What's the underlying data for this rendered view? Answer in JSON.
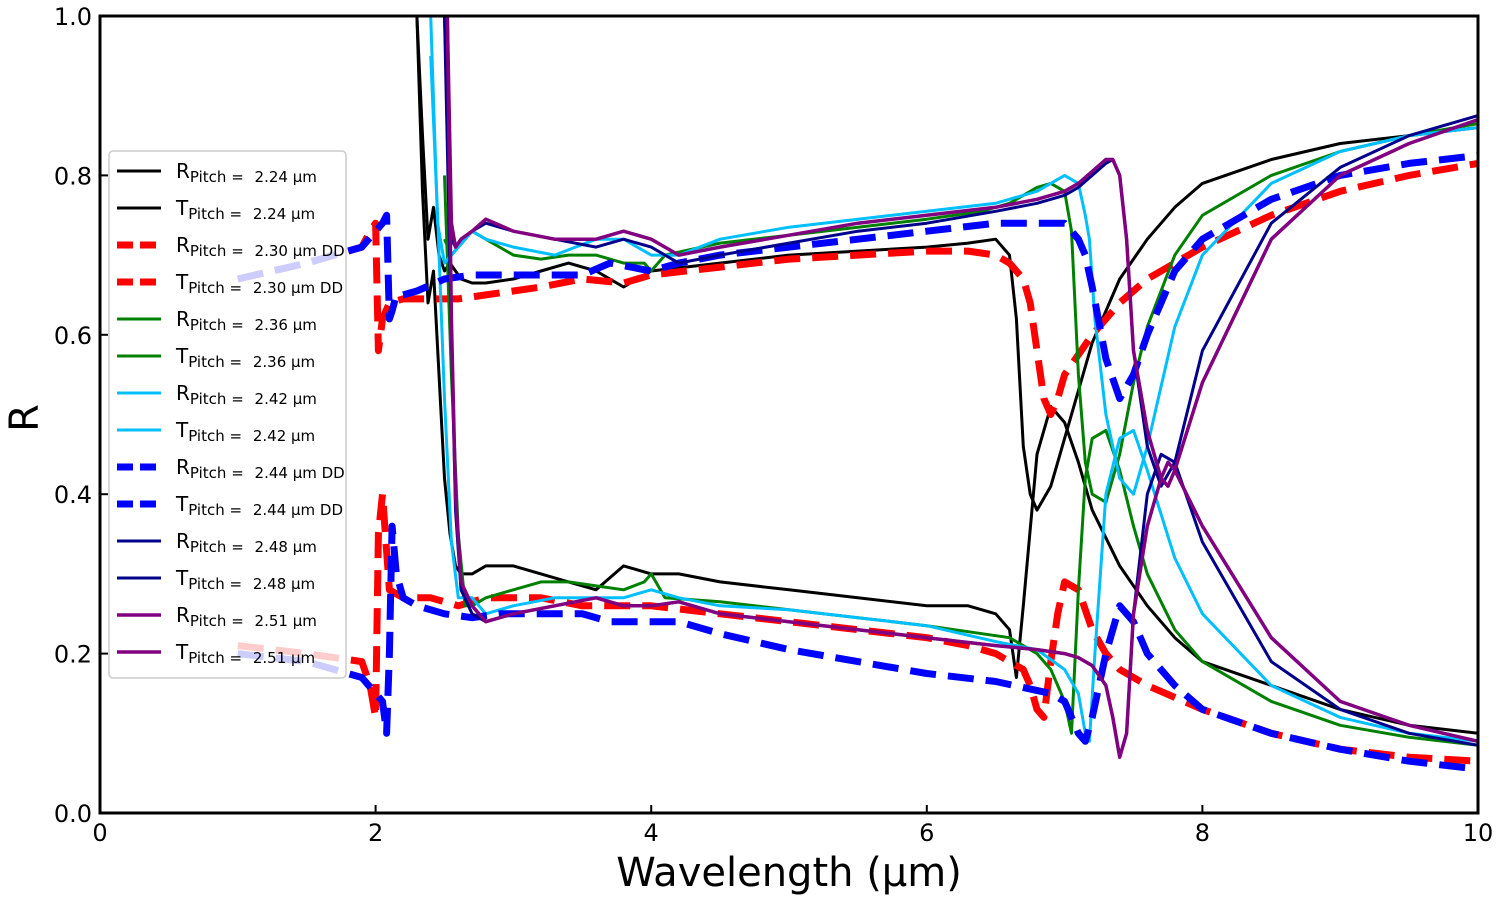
{
  "chart_data": {
    "type": "line",
    "xlabel": "Wavelength (μm)",
    "ylabel": "R",
    "xlim": [
      0,
      10
    ],
    "ylim": [
      0,
      1
    ],
    "xticks": [
      "0",
      "2",
      "4",
      "6",
      "8",
      "10"
    ],
    "yticks": [
      "0.0",
      "0.2",
      "0.4",
      "0.6",
      "0.8",
      "1.0"
    ],
    "grid": false,
    "legend_placement": "center-left",
    "series": [
      {
        "letter": "R",
        "sub": "Pitch = ",
        "rest": "2.24 μm",
        "color": "#000000",
        "width": 3,
        "dash": "",
        "x": [
          2.3,
          2.34,
          2.38,
          2.42,
          2.46,
          2.5,
          2.54,
          2.58,
          2.62,
          2.7,
          2.8,
          2.9,
          3.0,
          3.2,
          3.4,
          3.6,
          3.8,
          4.0,
          4.2,
          4.5,
          5.0,
          5.5,
          6.0,
          6.3,
          6.5,
          6.6,
          6.65,
          6.7,
          6.8,
          6.9,
          7.0,
          7.1,
          7.2,
          7.4,
          7.6,
          7.8,
          8.0,
          8.5,
          9.0,
          9.5,
          10.0
        ],
        "y": [
          1.0,
          0.78,
          0.64,
          0.68,
          0.55,
          0.42,
          0.35,
          0.31,
          0.3,
          0.3,
          0.31,
          0.31,
          0.31,
          0.3,
          0.29,
          0.28,
          0.31,
          0.3,
          0.3,
          0.29,
          0.28,
          0.27,
          0.26,
          0.26,
          0.25,
          0.23,
          0.17,
          0.26,
          0.45,
          0.51,
          0.49,
          0.44,
          0.38,
          0.31,
          0.26,
          0.22,
          0.19,
          0.16,
          0.13,
          0.11,
          0.1
        ]
      },
      {
        "letter": "T",
        "sub": "Pitch = ",
        "rest": "2.24 μm",
        "color": "#000000",
        "width": 3,
        "dash": "",
        "x": [
          2.3,
          2.34,
          2.38,
          2.42,
          2.46,
          2.5,
          2.54,
          2.58,
          2.62,
          2.7,
          2.8,
          3.0,
          3.2,
          3.4,
          3.6,
          3.8,
          4.0,
          4.5,
          5.0,
          5.5,
          6.0,
          6.3,
          6.5,
          6.6,
          6.65,
          6.7,
          6.75,
          6.8,
          6.9,
          7.0,
          7.2,
          7.4,
          7.6,
          7.8,
          8.0,
          8.5,
          9.0,
          9.5,
          10.0
        ],
        "y": [
          1.0,
          0.85,
          0.72,
          0.76,
          0.7,
          0.68,
          0.69,
          0.68,
          0.67,
          0.665,
          0.665,
          0.67,
          0.68,
          0.69,
          0.68,
          0.66,
          0.68,
          0.69,
          0.7,
          0.705,
          0.71,
          0.715,
          0.72,
          0.7,
          0.62,
          0.46,
          0.4,
          0.38,
          0.41,
          0.47,
          0.59,
          0.67,
          0.72,
          0.76,
          0.79,
          0.82,
          0.84,
          0.85,
          0.86
        ]
      },
      {
        "letter": "R",
        "sub": "Pitch = ",
        "rest": "2.30 μm DD",
        "color": "#ff0000",
        "width": 7,
        "dash": "26,12",
        "x": [
          1.0,
          1.5,
          1.9,
          1.96,
          2.0,
          2.02,
          2.05,
          2.1,
          2.2,
          2.4,
          2.6,
          2.8,
          3.0,
          3.2,
          3.5,
          3.8,
          4.0,
          4.5,
          5.0,
          5.5,
          6.0,
          6.3,
          6.5,
          6.6,
          6.7,
          6.75,
          6.8,
          6.85,
          6.9,
          6.95,
          7.0,
          7.1,
          7.2,
          7.3,
          7.4,
          7.6,
          8.0,
          8.5,
          9.0,
          9.5,
          10.0
        ],
        "y": [
          0.21,
          0.2,
          0.19,
          0.16,
          0.12,
          0.35,
          0.4,
          0.28,
          0.27,
          0.27,
          0.26,
          0.27,
          0.27,
          0.27,
          0.26,
          0.26,
          0.26,
          0.25,
          0.24,
          0.23,
          0.22,
          0.21,
          0.2,
          0.19,
          0.18,
          0.16,
          0.13,
          0.12,
          0.19,
          0.25,
          0.29,
          0.28,
          0.23,
          0.2,
          0.18,
          0.16,
          0.13,
          0.1,
          0.08,
          0.07,
          0.065
        ]
      },
      {
        "letter": "T",
        "sub": "Pitch = ",
        "rest": "2.30 μm DD",
        "color": "#ff0000",
        "width": 7,
        "dash": "26,12",
        "x": [
          1.0,
          1.5,
          1.9,
          1.96,
          2.0,
          2.02,
          2.05,
          2.1,
          2.2,
          2.4,
          2.6,
          2.8,
          3.0,
          3.2,
          3.5,
          3.8,
          4.0,
          4.5,
          5.0,
          5.5,
          6.0,
          6.3,
          6.5,
          6.6,
          6.7,
          6.75,
          6.8,
          6.85,
          6.9,
          6.95,
          7.0,
          7.2,
          7.4,
          7.6,
          8.0,
          8.5,
          9.0,
          9.5,
          10.0
        ],
        "y": [
          0.67,
          0.69,
          0.71,
          0.73,
          0.74,
          0.58,
          0.62,
          0.64,
          0.645,
          0.645,
          0.645,
          0.65,
          0.655,
          0.66,
          0.67,
          0.665,
          0.675,
          0.685,
          0.695,
          0.7,
          0.705,
          0.705,
          0.7,
          0.69,
          0.67,
          0.64,
          0.58,
          0.52,
          0.5,
          0.52,
          0.55,
          0.6,
          0.64,
          0.67,
          0.71,
          0.75,
          0.78,
          0.8,
          0.815
        ]
      },
      {
        "letter": "R",
        "sub": "Pitch = ",
        "rest": "2.36 μm",
        "color": "#008000",
        "width": 3,
        "dash": "",
        "x": [
          2.5,
          2.55,
          2.6,
          2.65,
          2.7,
          2.8,
          3.0,
          3.2,
          3.4,
          3.6,
          3.8,
          3.95,
          4.0,
          4.1,
          4.5,
          5.0,
          5.5,
          6.0,
          6.4,
          6.6,
          6.8,
          6.9,
          7.0,
          7.05,
          7.1,
          7.15,
          7.2,
          7.3,
          7.4,
          7.5,
          7.6,
          7.8,
          8.0,
          8.5,
          9.0,
          9.5,
          10.0
        ],
        "y": [
          0.8,
          0.55,
          0.35,
          0.26,
          0.26,
          0.27,
          0.28,
          0.29,
          0.29,
          0.285,
          0.28,
          0.29,
          0.3,
          0.27,
          0.265,
          0.255,
          0.245,
          0.235,
          0.225,
          0.22,
          0.2,
          0.18,
          0.14,
          0.1,
          0.28,
          0.42,
          0.47,
          0.48,
          0.43,
          0.36,
          0.3,
          0.23,
          0.19,
          0.14,
          0.11,
          0.095,
          0.085
        ]
      },
      {
        "letter": "T",
        "sub": "Pitch = ",
        "rest": "2.36 μm",
        "color": "#008000",
        "width": 3,
        "dash": "",
        "x": [
          2.5,
          2.55,
          2.6,
          2.65,
          2.7,
          2.8,
          3.0,
          3.2,
          3.4,
          3.6,
          3.8,
          3.95,
          4.0,
          4.1,
          4.5,
          5.0,
          5.5,
          6.0,
          6.4,
          6.6,
          6.8,
          6.9,
          7.0,
          7.05,
          7.1,
          7.15,
          7.2,
          7.3,
          7.4,
          7.5,
          7.6,
          7.8,
          8.0,
          8.5,
          9.0,
          9.5,
          10.0
        ],
        "y": [
          0.72,
          0.7,
          0.71,
          0.72,
          0.73,
          0.72,
          0.7,
          0.695,
          0.7,
          0.7,
          0.69,
          0.69,
          0.68,
          0.7,
          0.715,
          0.725,
          0.735,
          0.745,
          0.755,
          0.765,
          0.785,
          0.79,
          0.78,
          0.73,
          0.55,
          0.44,
          0.4,
          0.39,
          0.45,
          0.54,
          0.61,
          0.7,
          0.75,
          0.8,
          0.83,
          0.85,
          0.865
        ]
      },
      {
        "letter": "R",
        "sub": "Pitch = ",
        "rest": "2.42 μm",
        "color": "#00bfff",
        "width": 3,
        "dash": "",
        "x": [
          2.4,
          2.45,
          2.5,
          2.55,
          2.6,
          2.7,
          2.8,
          3.0,
          3.3,
          3.6,
          3.8,
          4.0,
          4.2,
          4.5,
          5.0,
          5.5,
          6.0,
          6.5,
          6.8,
          7.0,
          7.1,
          7.15,
          7.18,
          7.22,
          7.3,
          7.4,
          7.5,
          7.6,
          7.8,
          8.0,
          8.5,
          9.0,
          9.5,
          10.0
        ],
        "y": [
          0.95,
          0.75,
          0.52,
          0.34,
          0.27,
          0.27,
          0.25,
          0.26,
          0.27,
          0.27,
          0.27,
          0.28,
          0.27,
          0.26,
          0.255,
          0.245,
          0.235,
          0.215,
          0.205,
          0.18,
          0.15,
          0.1,
          0.09,
          0.2,
          0.4,
          0.47,
          0.48,
          0.43,
          0.32,
          0.25,
          0.16,
          0.12,
          0.1,
          0.09
        ]
      },
      {
        "letter": "T",
        "sub": "Pitch = ",
        "rest": "2.42 μm",
        "color": "#00bfff",
        "width": 3,
        "dash": "",
        "x": [
          2.4,
          2.45,
          2.5,
          2.55,
          2.6,
          2.7,
          2.8,
          3.0,
          3.3,
          3.6,
          3.8,
          4.0,
          4.2,
          4.5,
          5.0,
          5.5,
          6.0,
          6.5,
          6.8,
          7.0,
          7.1,
          7.15,
          7.18,
          7.22,
          7.3,
          7.4,
          7.5,
          7.6,
          7.8,
          8.0,
          8.5,
          9.0,
          9.5,
          10.0
        ],
        "y": [
          1.0,
          0.74,
          0.69,
          0.7,
          0.71,
          0.73,
          0.72,
          0.71,
          0.7,
          0.72,
          0.72,
          0.7,
          0.7,
          0.72,
          0.735,
          0.745,
          0.755,
          0.765,
          0.78,
          0.8,
          0.79,
          0.75,
          0.72,
          0.62,
          0.5,
          0.42,
          0.4,
          0.46,
          0.61,
          0.7,
          0.79,
          0.83,
          0.85,
          0.86
        ]
      },
      {
        "letter": "R",
        "sub": "Pitch = ",
        "rest": "2.44 μm DD",
        "color": "#0000ff",
        "width": 7,
        "dash": "26,12",
        "x": [
          1.0,
          1.5,
          1.9,
          2.0,
          2.05,
          2.08,
          2.1,
          2.12,
          2.15,
          2.2,
          2.3,
          2.5,
          2.7,
          2.9,
          3.2,
          3.5,
          3.7,
          4.0,
          4.2,
          4.5,
          5.0,
          5.5,
          6.0,
          6.5,
          6.9,
          7.0,
          7.1,
          7.15,
          7.2,
          7.3,
          7.4,
          7.5,
          7.6,
          7.8,
          8.0,
          8.5,
          9.0,
          9.5,
          10.0
        ],
        "y": [
          0.2,
          0.19,
          0.17,
          0.15,
          0.14,
          0.1,
          0.2,
          0.36,
          0.3,
          0.27,
          0.26,
          0.25,
          0.245,
          0.25,
          0.25,
          0.25,
          0.24,
          0.24,
          0.24,
          0.225,
          0.205,
          0.19,
          0.175,
          0.165,
          0.15,
          0.14,
          0.1,
          0.09,
          0.12,
          0.2,
          0.26,
          0.24,
          0.2,
          0.16,
          0.13,
          0.1,
          0.08,
          0.065,
          0.055
        ]
      },
      {
        "letter": "T",
        "sub": "Pitch = ",
        "rest": "2.44 μm DD",
        "color": "#0000ff",
        "width": 7,
        "dash": "26,12",
        "x": [
          1.0,
          1.5,
          1.9,
          2.0,
          2.05,
          2.08,
          2.1,
          2.12,
          2.15,
          2.2,
          2.3,
          2.5,
          2.7,
          2.9,
          3.2,
          3.5,
          3.7,
          4.0,
          4.2,
          4.5,
          5.0,
          5.5,
          6.0,
          6.5,
          6.9,
          7.0,
          7.1,
          7.15,
          7.2,
          7.3,
          7.4,
          7.5,
          7.6,
          7.8,
          8.0,
          8.5,
          9.0,
          9.5,
          10.0
        ],
        "y": [
          0.67,
          0.69,
          0.71,
          0.73,
          0.74,
          0.75,
          0.62,
          0.63,
          0.65,
          0.65,
          0.655,
          0.67,
          0.675,
          0.675,
          0.675,
          0.675,
          0.69,
          0.68,
          0.69,
          0.7,
          0.71,
          0.72,
          0.73,
          0.74,
          0.74,
          0.74,
          0.72,
          0.7,
          0.66,
          0.57,
          0.52,
          0.55,
          0.6,
          0.68,
          0.72,
          0.77,
          0.8,
          0.815,
          0.825
        ]
      },
      {
        "letter": "R",
        "sub": "Pitch = ",
        "rest": "2.48 μm",
        "color": "#00008b",
        "width": 3,
        "dash": "",
        "x": [
          2.5,
          2.55,
          2.58,
          2.62,
          2.7,
          2.8,
          3.0,
          3.3,
          3.6,
          3.8,
          4.0,
          4.2,
          4.5,
          5.0,
          5.5,
          6.0,
          6.5,
          6.8,
          7.0,
          7.1,
          7.2,
          7.3,
          7.35,
          7.4,
          7.45,
          7.5,
          7.6,
          7.7,
          7.8,
          8.0,
          8.5,
          9.0,
          9.5,
          10.0
        ],
        "y": [
          1.0,
          0.6,
          0.38,
          0.28,
          0.25,
          0.24,
          0.25,
          0.26,
          0.27,
          0.26,
          0.26,
          0.265,
          0.25,
          0.24,
          0.23,
          0.22,
          0.21,
          0.205,
          0.2,
          0.195,
          0.185,
          0.16,
          0.12,
          0.07,
          0.1,
          0.25,
          0.4,
          0.45,
          0.44,
          0.34,
          0.19,
          0.13,
          0.1,
          0.085
        ]
      },
      {
        "letter": "T",
        "sub": "Pitch = ",
        "rest": "2.48 μm",
        "color": "#00008b",
        "width": 3,
        "dash": "",
        "x": [
          2.5,
          2.55,
          2.58,
          2.62,
          2.7,
          2.8,
          3.0,
          3.3,
          3.6,
          3.8,
          4.0,
          4.2,
          4.5,
          5.0,
          5.5,
          6.0,
          6.5,
          6.8,
          7.0,
          7.1,
          7.2,
          7.3,
          7.35,
          7.4,
          7.45,
          7.5,
          7.6,
          7.7,
          7.8,
          8.0,
          8.5,
          9.0,
          9.5,
          10.0
        ],
        "y": [
          1.0,
          0.72,
          0.71,
          0.72,
          0.73,
          0.74,
          0.73,
          0.72,
          0.71,
          0.72,
          0.71,
          0.69,
          0.7,
          0.715,
          0.73,
          0.74,
          0.755,
          0.765,
          0.775,
          0.785,
          0.8,
          0.815,
          0.82,
          0.8,
          0.72,
          0.58,
          0.46,
          0.41,
          0.44,
          0.58,
          0.74,
          0.81,
          0.85,
          0.875
        ]
      },
      {
        "letter": "R",
        "sub": "Pitch = ",
        "rest": "2.51 μm",
        "color": "#800080",
        "width": 3.5,
        "dash": "",
        "x": [
          2.52,
          2.55,
          2.58,
          2.62,
          2.7,
          2.8,
          3.0,
          3.3,
          3.6,
          3.8,
          4.0,
          4.2,
          4.5,
          5.0,
          5.5,
          6.0,
          6.5,
          6.8,
          7.0,
          7.1,
          7.2,
          7.3,
          7.35,
          7.4,
          7.45,
          7.5,
          7.6,
          7.7,
          7.75,
          7.8,
          8.0,
          8.5,
          9.0,
          9.5,
          10.0
        ],
        "y": [
          1.0,
          0.62,
          0.4,
          0.29,
          0.26,
          0.24,
          0.25,
          0.26,
          0.27,
          0.26,
          0.26,
          0.265,
          0.25,
          0.24,
          0.23,
          0.22,
          0.21,
          0.205,
          0.2,
          0.195,
          0.185,
          0.16,
          0.12,
          0.07,
          0.1,
          0.25,
          0.36,
          0.42,
          0.44,
          0.43,
          0.36,
          0.22,
          0.14,
          0.11,
          0.09
        ]
      },
      {
        "letter": "T",
        "sub": "Pitch = ",
        "rest": "2.51 μm",
        "color": "#800080",
        "width": 3.5,
        "dash": "",
        "x": [
          2.52,
          2.55,
          2.58,
          2.62,
          2.7,
          2.8,
          3.0,
          3.3,
          3.6,
          3.8,
          4.0,
          4.2,
          4.5,
          5.0,
          5.5,
          6.0,
          6.5,
          6.8,
          7.0,
          7.1,
          7.2,
          7.3,
          7.35,
          7.4,
          7.45,
          7.5,
          7.6,
          7.7,
          7.75,
          7.8,
          8.0,
          8.5,
          9.0,
          9.5,
          10.0
        ],
        "y": [
          1.0,
          0.74,
          0.71,
          0.72,
          0.73,
          0.745,
          0.73,
          0.72,
          0.72,
          0.73,
          0.72,
          0.7,
          0.71,
          0.725,
          0.74,
          0.75,
          0.76,
          0.77,
          0.78,
          0.79,
          0.805,
          0.82,
          0.82,
          0.8,
          0.72,
          0.58,
          0.48,
          0.42,
          0.41,
          0.43,
          0.54,
          0.72,
          0.8,
          0.84,
          0.87
        ]
      }
    ]
  }
}
